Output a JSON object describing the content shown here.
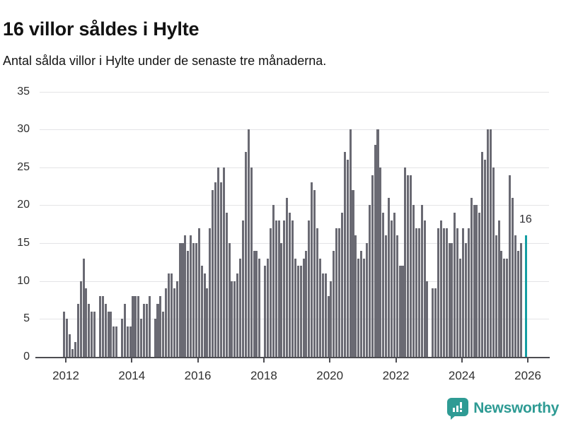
{
  "header": {
    "title": "16 villor såldes i Hylte",
    "subtitle": "Antal sålda villor i Hylte under de senaste tre månaderna."
  },
  "annotation": {
    "last_value_label": "16"
  },
  "branding": {
    "name": "Newsworthy",
    "icon": "speech-bubble-bar-chart-icon"
  },
  "colors": {
    "bar": "#6a6a73",
    "highlight": "#149ea3",
    "axis": "#4d4d52",
    "gridline": "#e4e4e6",
    "brand_teal": "#2e9b94"
  },
  "chart_data": {
    "type": "bar",
    "title": "16 villor såldes i Hylte",
    "subtitle": "Antal sålda villor i Hylte under de senaste tre månaderna.",
    "ylim": [
      0,
      35
    ],
    "y_ticks": [
      0,
      5,
      10,
      15,
      20,
      25,
      30,
      35
    ],
    "x_tick_labels": [
      "2012",
      "2014",
      "2016",
      "2018",
      "2020",
      "2022",
      "2024",
      "2026"
    ],
    "grid": "horizontal",
    "legend": "none",
    "start_month": "2011-12",
    "frequency": "monthly",
    "values": [
      6,
      5,
      3,
      1,
      2,
      7,
      10,
      13,
      9,
      7,
      6,
      6,
      0,
      8,
      8,
      7,
      6,
      6,
      4,
      4,
      0,
      5,
      7,
      4,
      4,
      8,
      8,
      8,
      5,
      7,
      7,
      8,
      0,
      5,
      7,
      8,
      6,
      9,
      11,
      11,
      9,
      10,
      15,
      15,
      16,
      14,
      16,
      15,
      15,
      17,
      12,
      11,
      9,
      17,
      22,
      23,
      25,
      23,
      25,
      19,
      15,
      10,
      10,
      11,
      13,
      18,
      27,
      30,
      25,
      14,
      14,
      13,
      0,
      12,
      13,
      17,
      20,
      18,
      18,
      15,
      18,
      21,
      19,
      18,
      13,
      12,
      12,
      13,
      14,
      18,
      23,
      22,
      17,
      13,
      11,
      11,
      8,
      10,
      14,
      17,
      17,
      19,
      27,
      26,
      30,
      22,
      16,
      13,
      14,
      13,
      15,
      20,
      24,
      28,
      30,
      25,
      19,
      16,
      21,
      18,
      19,
      16,
      12,
      12,
      25,
      24,
      24,
      20,
      17,
      17,
      20,
      18,
      10,
      0,
      9,
      9,
      17,
      18,
      17,
      17,
      15,
      15,
      19,
      17,
      13,
      17,
      15,
      17,
      21,
      20,
      20,
      19,
      27,
      26,
      30,
      30,
      25,
      16,
      18,
      14,
      13,
      13,
      24,
      21,
      16,
      14,
      15,
      0
    ],
    "highlight_bar": {
      "slot": 168,
      "month": "2025-12",
      "value": 16,
      "label": "16"
    }
  }
}
